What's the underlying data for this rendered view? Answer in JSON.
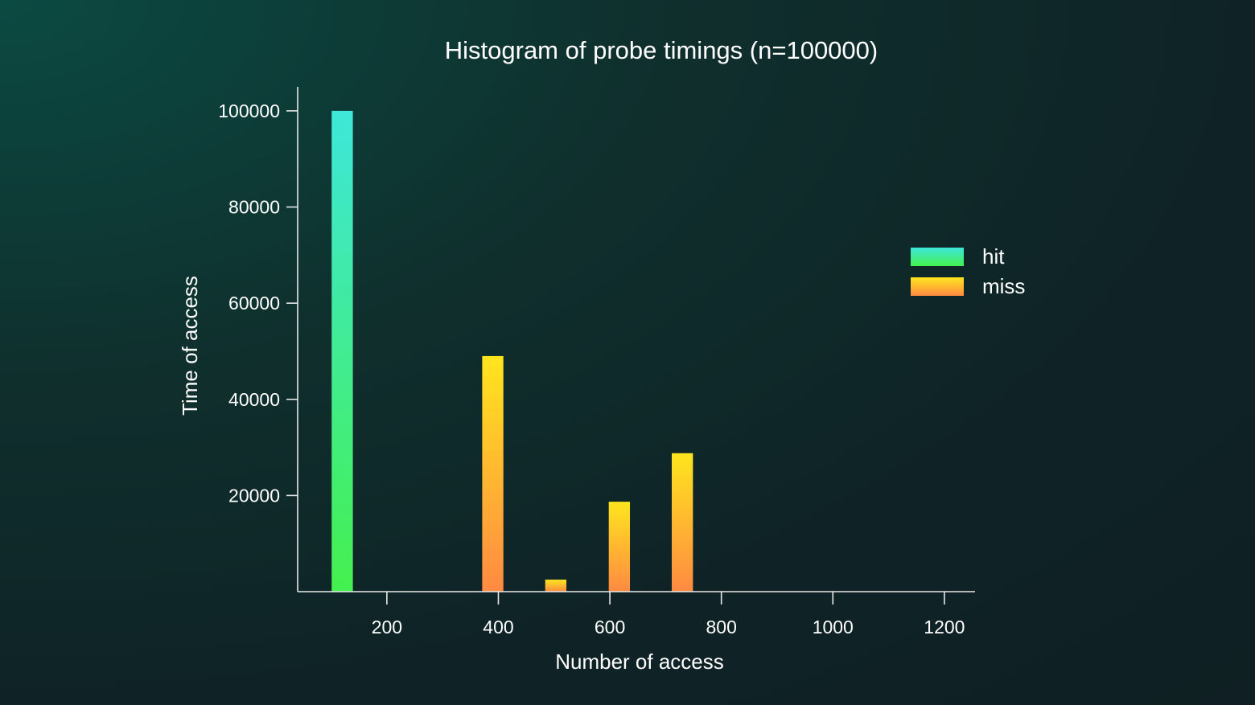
{
  "chart_data": {
    "type": "bar",
    "title": "Histogram of probe timings (n=100000)",
    "xlabel": "Number of access",
    "ylabel": "Time of access",
    "xlim": [
      40,
      1255
    ],
    "ylim": [
      0,
      105000
    ],
    "xticks": [
      200,
      400,
      600,
      800,
      1000,
      1200
    ],
    "yticks": [
      20000,
      40000,
      60000,
      80000,
      100000
    ],
    "bar_width": 38,
    "grid": false,
    "legend_position": "right",
    "series": [
      {
        "name": "hit",
        "colors": [
          "#44f04e",
          "#3ee7d9"
        ],
        "points": [
          {
            "x": 120,
            "y": 100000
          }
        ]
      },
      {
        "name": "miss",
        "colors": [
          "#ff8a42",
          "#ffe51e"
        ],
        "points": [
          {
            "x": 390,
            "y": 49000
          },
          {
            "x": 503,
            "y": 2500
          },
          {
            "x": 617,
            "y": 18700
          },
          {
            "x": 730,
            "y": 28800
          }
        ]
      }
    ]
  }
}
